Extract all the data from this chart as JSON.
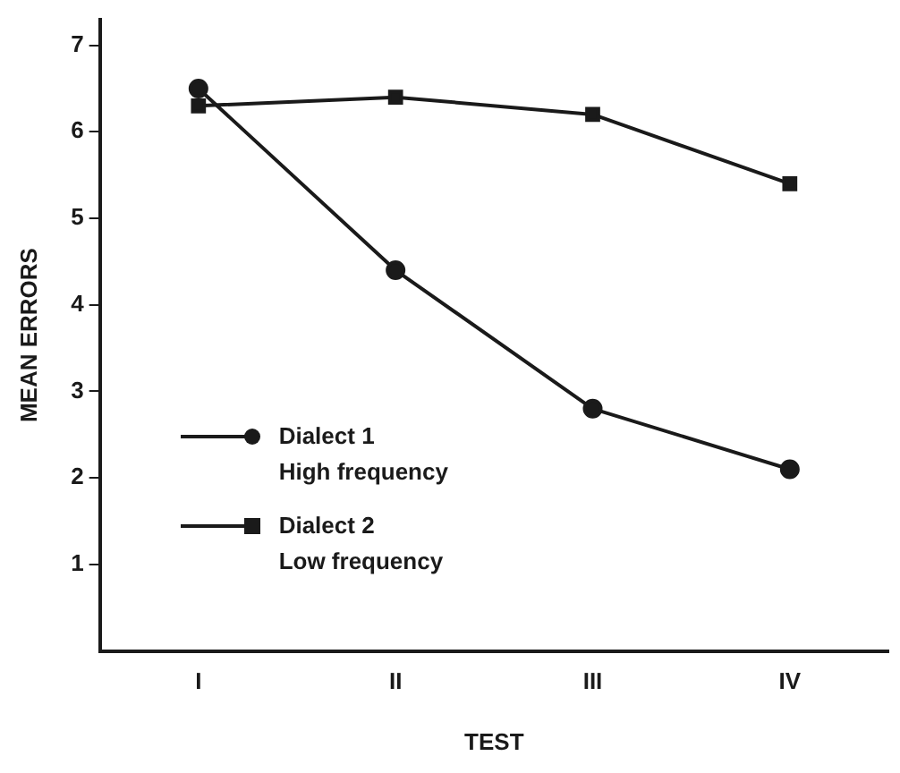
{
  "chart_data": {
    "type": "line",
    "xlabel": "TEST",
    "ylabel": "MEAN ERRORS",
    "categories": [
      "I",
      "II",
      "III",
      "IV"
    ],
    "series": [
      {
        "name": "Dialect 1\nHigh frequency",
        "color": "#1a1a1a",
        "marker": "circle",
        "values": [
          6.5,
          4.4,
          2.8,
          2.1
        ]
      },
      {
        "name": "Dialect 2\nLow frequency",
        "color": "#1a1a1a",
        "marker": "square",
        "values": [
          6.3,
          6.4,
          6.2,
          5.4
        ]
      }
    ],
    "ylim": [
      0,
      7.3
    ],
    "yticks": [
      1,
      2,
      3,
      4,
      5,
      6,
      7
    ],
    "grid": false,
    "legend": "bottom left",
    "line_style": "solid"
  }
}
